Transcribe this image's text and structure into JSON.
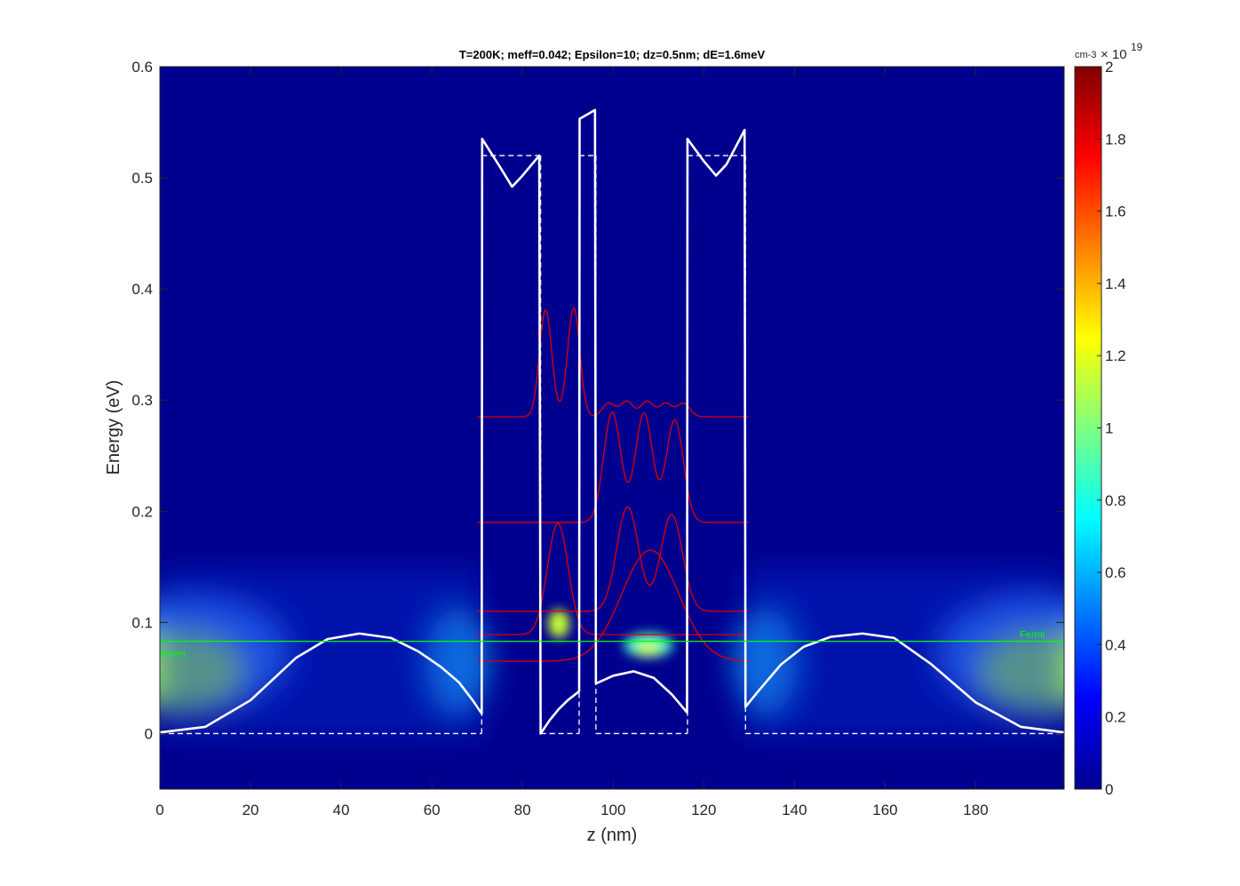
{
  "chart_data": {
    "type": "heatmap",
    "title": "T=200K; meff=0.042; Epsilon=10; dz=0.5nm; dE=1.6meV",
    "xlabel": "z (nm)",
    "ylabel": "Energy (eV)",
    "xlim": [
      0,
      199.5
    ],
    "ylim": [
      -0.05,
      0.6
    ],
    "xticks": [
      0,
      20,
      40,
      60,
      80,
      100,
      120,
      140,
      160,
      180
    ],
    "yticks": [
      0,
      0.1,
      0.2,
      0.3,
      0.4,
      0.5,
      0.6
    ],
    "colorbar": {
      "unit": "cm-3",
      "exponent_base": "× 10",
      "exponent": "19",
      "range": [
        0,
        2
      ],
      "ticks": [
        0,
        0.2,
        0.4,
        0.6,
        0.8,
        1,
        1.2,
        1.4,
        1.6,
        1.8,
        2
      ],
      "colormap": "jet"
    },
    "fermi": {
      "energy": 0.083,
      "label": "Fermi",
      "color": "#00ff00"
    },
    "conduction_band": {
      "color": "#ffffff",
      "points": [
        [
          0,
          0.001
        ],
        [
          10,
          0.006
        ],
        [
          20,
          0.03
        ],
        [
          30,
          0.068
        ],
        [
          37,
          0.085
        ],
        [
          44,
          0.09
        ],
        [
          51,
          0.086
        ],
        [
          57,
          0.074
        ],
        [
          62,
          0.06
        ],
        [
          66,
          0.046
        ],
        [
          69,
          0.03
        ],
        [
          71,
          0.018
        ],
        [
          71.1,
          0.535
        ],
        [
          75,
          0.51
        ],
        [
          77.7,
          0.492
        ],
        [
          80,
          0.502
        ],
        [
          83.7,
          0.52
        ],
        [
          84,
          0.0
        ],
        [
          86,
          0.012
        ],
        [
          88,
          0.022
        ],
        [
          90,
          0.03
        ],
        [
          92.5,
          0.038
        ],
        [
          92.6,
          0.553
        ],
        [
          96,
          0.561
        ],
        [
          96.2,
          0.045
        ],
        [
          100,
          0.052
        ],
        [
          104.5,
          0.056
        ],
        [
          109,
          0.05
        ],
        [
          113,
          0.035
        ],
        [
          116.3,
          0.019
        ],
        [
          116.4,
          0.535
        ],
        [
          120,
          0.515
        ],
        [
          122.7,
          0.502
        ],
        [
          125,
          0.512
        ],
        [
          129,
          0.543
        ],
        [
          129.2,
          0.024
        ],
        [
          132,
          0.038
        ],
        [
          137,
          0.062
        ],
        [
          142,
          0.078
        ],
        [
          148,
          0.087
        ],
        [
          155,
          0.09
        ],
        [
          162,
          0.086
        ],
        [
          170,
          0.063
        ],
        [
          180,
          0.028
        ],
        [
          190,
          0.006
        ],
        [
          199.5,
          0.001
        ]
      ]
    },
    "band_offsets_dashed": [
      [
        [
          0,
          0
        ],
        [
          71,
          0
        ]
      ],
      [
        [
          71,
          0
        ],
        [
          71,
          0.52
        ]
      ],
      [
        [
          71,
          0.52
        ],
        [
          84,
          0.52
        ]
      ],
      [
        [
          84,
          0.52
        ],
        [
          84,
          0
        ]
      ],
      [
        [
          84,
          0
        ],
        [
          92.5,
          0
        ]
      ],
      [
        [
          92.5,
          0
        ],
        [
          92.5,
          0.52
        ]
      ],
      [
        [
          92.5,
          0.52
        ],
        [
          96.2,
          0.52
        ]
      ],
      [
        [
          96.2,
          0.52
        ],
        [
          96.2,
          0
        ]
      ],
      [
        [
          96.2,
          0
        ],
        [
          116.4,
          0
        ]
      ],
      [
        [
          116.4,
          0
        ],
        [
          116.4,
          0.52
        ]
      ],
      [
        [
          116.4,
          0.52
        ],
        [
          129.2,
          0.52
        ]
      ],
      [
        [
          129.2,
          0.52
        ],
        [
          129.2,
          0
        ]
      ],
      [
        [
          129.2,
          0
        ],
        [
          199.5,
          0
        ]
      ]
    ],
    "wavefunctions": {
      "color": "#dd0000",
      "z_range": [
        70,
        129.8
      ],
      "states": [
        {
          "energy": 0.065,
          "peaks": [
            {
              "z": 108.2,
              "amp": 0.1,
              "w": 6.3,
              "sign": 1
            }
          ]
        },
        {
          "energy": 0.089,
          "peaks": [
            {
              "z": 87.8,
              "amp": 0.1,
              "w": 2.3,
              "sign": 1
            }
          ]
        },
        {
          "energy": 0.11,
          "peaks": [
            {
              "z": 103.2,
              "amp": 0.094,
              "w": 2.4,
              "sign": 1
            },
            {
              "z": 112.9,
              "amp": 0.087,
              "w": 2.4,
              "sign": 1
            }
          ]
        },
        {
          "energy": 0.19,
          "peaks": [
            {
              "z": 99.8,
              "amp": 0.099,
              "w": 1.9,
              "sign": 1
            },
            {
              "z": 106.8,
              "amp": 0.098,
              "w": 1.9,
              "sign": 1
            },
            {
              "z": 113.6,
              "amp": 0.092,
              "w": 1.9,
              "sign": 1
            }
          ]
        },
        {
          "energy": 0.285,
          "peaks": [
            {
              "z": 85.1,
              "amp": 0.096,
              "w": 1.35,
              "sign": 1
            },
            {
              "z": 91.3,
              "amp": 0.098,
              "w": 1.35,
              "sign": 1
            },
            {
              "z": 99,
              "amp": 0.012,
              "w": 1.4,
              "sign": 1
            },
            {
              "z": 103,
              "amp": 0.014,
              "w": 1.4,
              "sign": 1
            },
            {
              "z": 107.5,
              "amp": 0.014,
              "w": 1.4,
              "sign": 1
            },
            {
              "z": 111.6,
              "amp": 0.012,
              "w": 1.4,
              "sign": 1
            },
            {
              "z": 115.5,
              "amp": 0.012,
              "w": 1.4,
              "sign": 1
            }
          ]
        }
      ]
    }
  }
}
